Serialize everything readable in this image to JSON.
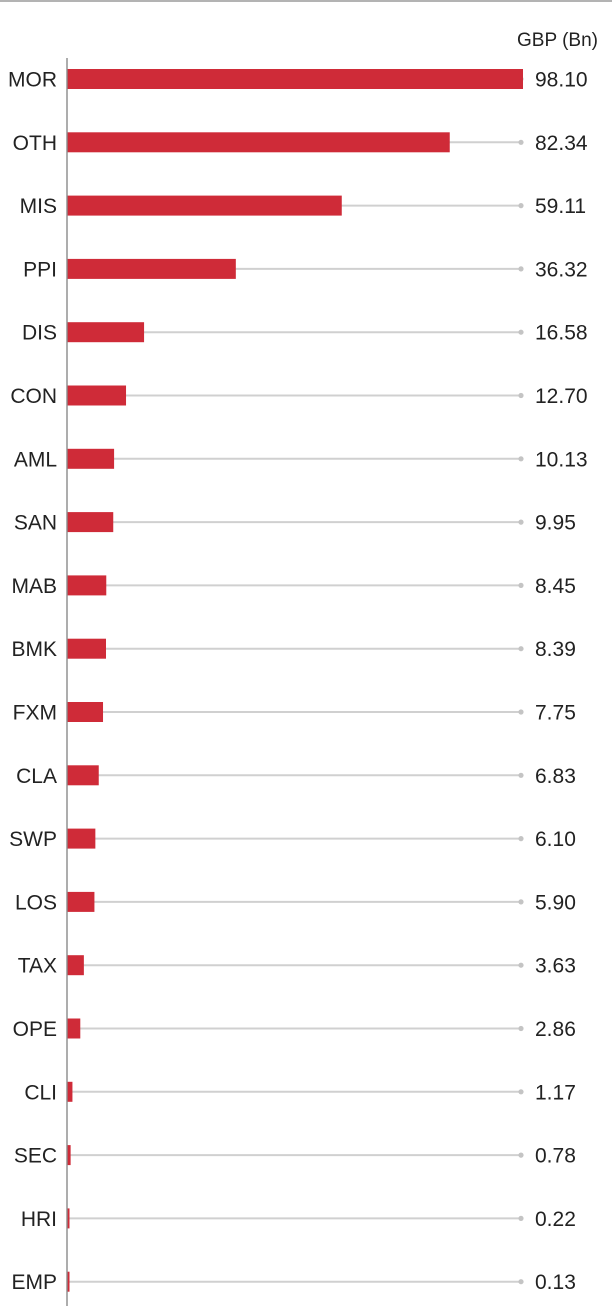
{
  "chart_data": {
    "type": "bar",
    "orientation": "horizontal",
    "unit_label": "GBP (Bn)",
    "categories": [
      "MOR",
      "OTH",
      "MIS",
      "PPI",
      "DIS",
      "CON",
      "AML",
      "SAN",
      "MAB",
      "BMK",
      "FXM",
      "CLA",
      "SWP",
      "LOS",
      "TAX",
      "OPE",
      "CLI",
      "SEC",
      "HRI",
      "EMP"
    ],
    "values": [
      98.1,
      82.34,
      59.11,
      36.32,
      16.58,
      12.7,
      10.13,
      9.95,
      8.45,
      8.39,
      7.75,
      6.83,
      6.1,
      5.9,
      3.63,
      2.86,
      1.17,
      0.78,
      0.22,
      0.13
    ],
    "value_labels": [
      "98.10",
      "82.34",
      "59.11",
      "36.32",
      "16.58",
      "12.70",
      "10.13",
      "9.95",
      "8.45",
      "8.39",
      "7.75",
      "6.83",
      "6.10",
      "5.90",
      "3.63",
      "2.86",
      "1.17",
      "0.78",
      "0.22",
      "0.13"
    ],
    "xlim": [
      0,
      98.1
    ],
    "bar_color": "#cf2b38",
    "track_color": "#d0d0d0",
    "grid": false
  }
}
